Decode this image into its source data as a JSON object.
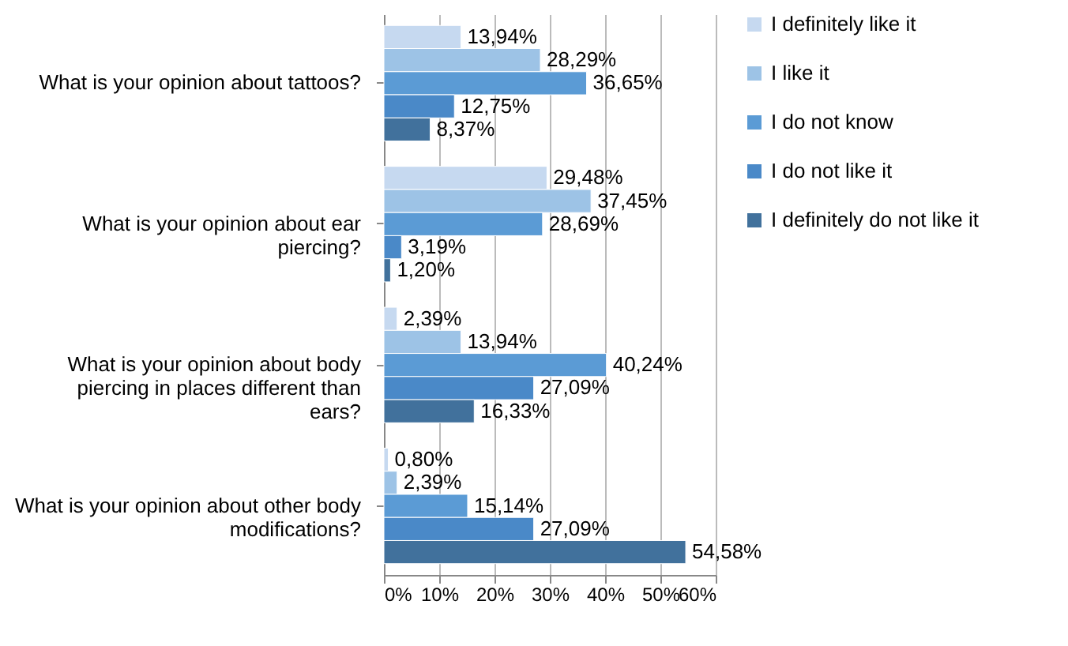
{
  "chart_data": {
    "type": "bar",
    "orientation": "horizontal",
    "categories": [
      "What is your opinion about tattoos?",
      "What is your opinion about ear piercing?",
      "What is your opinion about body piercing in places different than ears?",
      "What is your opinion about other body modifications?"
    ],
    "series": [
      {
        "name": "I definitely like it",
        "color": "#c6d9f0",
        "values": [
          13.94,
          29.48,
          2.39,
          0.8
        ],
        "value_labels": [
          "13,94%",
          "29,48%",
          "2,39%",
          "0,80%"
        ]
      },
      {
        "name": "I like it",
        "color": "#9dc3e6",
        "values": [
          28.29,
          37.45,
          13.94,
          2.39
        ],
        "value_labels": [
          "28,29%",
          "37,45%",
          "13,94%",
          "2,39%"
        ]
      },
      {
        "name": "I do not know",
        "color": "#5b9bd5",
        "values": [
          36.65,
          28.69,
          40.24,
          15.14
        ],
        "value_labels": [
          "36,65%",
          "28,69%",
          "40,24%",
          "15,14%"
        ]
      },
      {
        "name": "I do not like it",
        "color": "#4a89c8",
        "values": [
          12.75,
          3.19,
          27.09,
          27.09
        ],
        "value_labels": [
          "12,75%",
          "3,19%",
          "27,09%",
          "27,09%"
        ]
      },
      {
        "name": "I definitely do not like it",
        "color": "#41719c",
        "values": [
          8.37,
          1.2,
          16.33,
          54.58
        ],
        "value_labels": [
          "8,37%",
          "1,20%",
          "16,33%",
          "54,58%"
        ]
      }
    ],
    "xlim": [
      0,
      60
    ],
    "xticks": [
      {
        "value": 0,
        "label": "0%"
      },
      {
        "value": 10,
        "label": "10%"
      },
      {
        "value": 20,
        "label": "20%"
      },
      {
        "value": 30,
        "label": "30%"
      },
      {
        "value": 40,
        "label": "40%"
      },
      {
        "value": 50,
        "label": "50%"
      },
      {
        "value": 60,
        "label": "60%"
      }
    ],
    "grid": "x",
    "legend": "right"
  }
}
